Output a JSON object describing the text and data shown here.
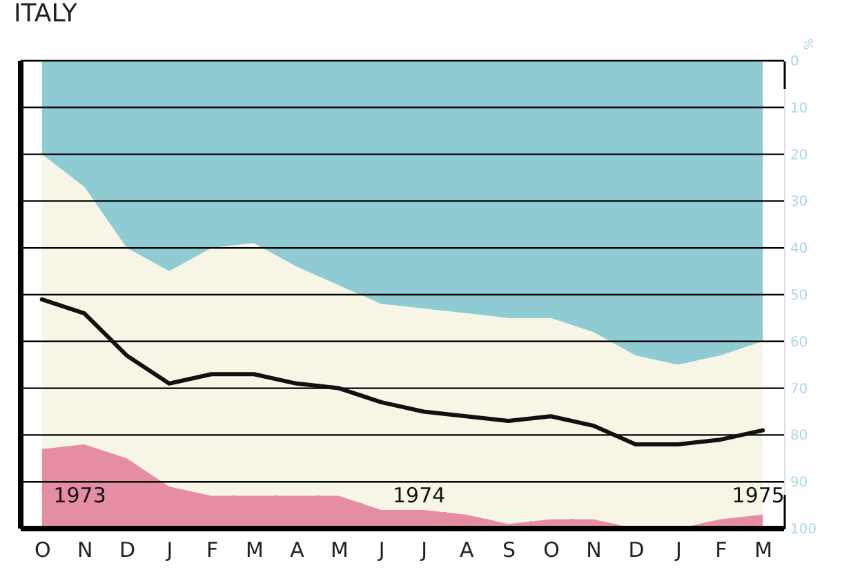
{
  "chart_data": {
    "type": "area",
    "title": "ITALY",
    "ylabel": "%",
    "stacked": true,
    "categories": [
      "O",
      "N",
      "D",
      "J",
      "F",
      "M",
      "A",
      "M",
      "J",
      "J",
      "A",
      "S",
      "O",
      "N",
      "D",
      "J",
      "F",
      "M"
    ],
    "series": [
      {
        "color": "#8ecbd3",
        "values": [
          20,
          27,
          40,
          45,
          40,
          39,
          44,
          48,
          52,
          53,
          54,
          55,
          55,
          58,
          63,
          65,
          63,
          60
        ]
      },
      {
        "color": "#f7f6e6",
        "values": [
          63,
          55,
          45,
          46,
          53,
          54,
          49,
          45,
          44,
          43,
          43,
          44,
          43,
          40,
          37,
          35,
          35,
          37
        ]
      },
      {
        "color": "#e58ea3",
        "values": [
          17,
          18,
          15,
          9,
          7,
          7,
          7,
          7,
          4,
          4,
          3,
          1,
          2,
          2,
          0,
          0,
          2,
          3
        ]
      },
      {
        "type": "line",
        "color": "#111111",
        "values": [
          51,
          54,
          63,
          69,
          67,
          67,
          69,
          70,
          73,
          75,
          76,
          77,
          76,
          78,
          82,
          82,
          81,
          79
        ]
      }
    ],
    "ylim": [
      100,
      0
    ],
    "yticks": [
      0,
      10,
      20,
      30,
      40,
      50,
      60,
      70,
      80,
      90,
      100
    ],
    "grid": "y",
    "line_style": "solid",
    "annotations": [
      "1973",
      "1974",
      "1975"
    ]
  }
}
